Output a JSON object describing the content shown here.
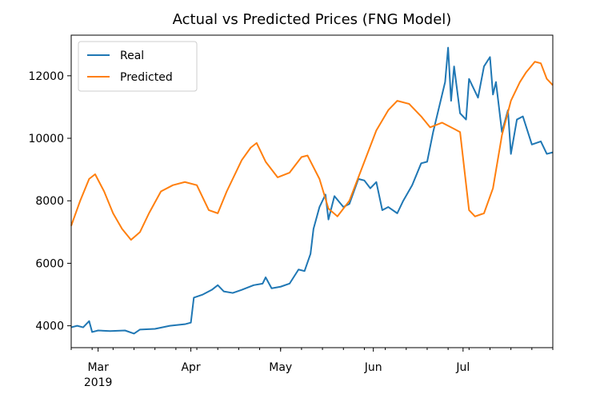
{
  "chart_data": {
    "type": "line",
    "title": "Actual vs Predicted Prices (FNG Model)",
    "xlabel": "",
    "ylabel": "",
    "x_range": [
      "2019-02-20",
      "2019-07-31"
    ],
    "ylim": [
      3300,
      13300
    ],
    "grid": false,
    "legend_position": "top-left",
    "y_ticks": [
      {
        "value": 4000,
        "label": "4000"
      },
      {
        "value": 6000,
        "label": "6000"
      },
      {
        "value": 8000,
        "label": "8000"
      },
      {
        "value": 10000,
        "label": "10000"
      },
      {
        "value": 12000,
        "label": "12000"
      }
    ],
    "x_ticks": [
      {
        "date": "2019-03-01",
        "label": "Mar",
        "sublabel": "2019"
      },
      {
        "date": "2019-04-01",
        "label": "Apr",
        "sublabel": ""
      },
      {
        "date": "2019-05-01",
        "label": "May",
        "sublabel": ""
      },
      {
        "date": "2019-06-01",
        "label": "Jun",
        "sublabel": ""
      },
      {
        "date": "2019-07-01",
        "label": "Jul",
        "sublabel": ""
      }
    ],
    "series": [
      {
        "name": "Real",
        "color": "#1f77b4",
        "points": [
          [
            "2019-02-20",
            3950
          ],
          [
            "2019-02-22",
            4000
          ],
          [
            "2019-02-24",
            3950
          ],
          [
            "2019-02-26",
            4150
          ],
          [
            "2019-02-27",
            3800
          ],
          [
            "2019-03-01",
            3850
          ],
          [
            "2019-03-05",
            3830
          ],
          [
            "2019-03-10",
            3850
          ],
          [
            "2019-03-13",
            3750
          ],
          [
            "2019-03-15",
            3880
          ],
          [
            "2019-03-20",
            3900
          ],
          [
            "2019-03-25",
            4000
          ],
          [
            "2019-03-30",
            4050
          ],
          [
            "2019-04-01",
            4100
          ],
          [
            "2019-04-02",
            4900
          ],
          [
            "2019-04-05",
            5000
          ],
          [
            "2019-04-08",
            5150
          ],
          [
            "2019-04-10",
            5300
          ],
          [
            "2019-04-12",
            5100
          ],
          [
            "2019-04-15",
            5050
          ],
          [
            "2019-04-18",
            5150
          ],
          [
            "2019-04-22",
            5300
          ],
          [
            "2019-04-25",
            5350
          ],
          [
            "2019-04-26",
            5550
          ],
          [
            "2019-04-28",
            5200
          ],
          [
            "2019-05-01",
            5250
          ],
          [
            "2019-05-04",
            5350
          ],
          [
            "2019-05-07",
            5800
          ],
          [
            "2019-05-09",
            5750
          ],
          [
            "2019-05-11",
            6300
          ],
          [
            "2019-05-12",
            7100
          ],
          [
            "2019-05-14",
            7800
          ],
          [
            "2019-05-16",
            8200
          ],
          [
            "2019-05-17",
            7400
          ],
          [
            "2019-05-19",
            8150
          ],
          [
            "2019-05-22",
            7800
          ],
          [
            "2019-05-24",
            7900
          ],
          [
            "2019-05-27",
            8700
          ],
          [
            "2019-05-29",
            8650
          ],
          [
            "2019-05-31",
            8400
          ],
          [
            "2019-06-02",
            8600
          ],
          [
            "2019-06-04",
            7700
          ],
          [
            "2019-06-06",
            7800
          ],
          [
            "2019-06-09",
            7600
          ],
          [
            "2019-06-11",
            8000
          ],
          [
            "2019-06-14",
            8500
          ],
          [
            "2019-06-17",
            9200
          ],
          [
            "2019-06-19",
            9250
          ],
          [
            "2019-06-21",
            10200
          ],
          [
            "2019-06-23",
            11000
          ],
          [
            "2019-06-25",
            11800
          ],
          [
            "2019-06-26",
            12900
          ],
          [
            "2019-06-27",
            11200
          ],
          [
            "2019-06-28",
            12300
          ],
          [
            "2019-06-30",
            10800
          ],
          [
            "2019-07-02",
            10600
          ],
          [
            "2019-07-03",
            11900
          ],
          [
            "2019-07-06",
            11300
          ],
          [
            "2019-07-08",
            12300
          ],
          [
            "2019-07-10",
            12600
          ],
          [
            "2019-07-11",
            11400
          ],
          [
            "2019-07-12",
            11800
          ],
          [
            "2019-07-14",
            10200
          ],
          [
            "2019-07-16",
            10900
          ],
          [
            "2019-07-17",
            9500
          ],
          [
            "2019-07-19",
            10600
          ],
          [
            "2019-07-21",
            10700
          ],
          [
            "2019-07-24",
            9800
          ],
          [
            "2019-07-27",
            9900
          ],
          [
            "2019-07-29",
            9500
          ],
          [
            "2019-07-31",
            9550
          ]
        ]
      },
      {
        "name": "Predicted",
        "color": "#ff7f0e",
        "points": [
          [
            "2019-02-20",
            7200
          ],
          [
            "2019-02-23",
            8000
          ],
          [
            "2019-02-26",
            8700
          ],
          [
            "2019-02-28",
            8850
          ],
          [
            "2019-03-03",
            8300
          ],
          [
            "2019-03-06",
            7600
          ],
          [
            "2019-03-09",
            7100
          ],
          [
            "2019-03-12",
            6750
          ],
          [
            "2019-03-15",
            7000
          ],
          [
            "2019-03-18",
            7600
          ],
          [
            "2019-03-22",
            8300
          ],
          [
            "2019-03-26",
            8500
          ],
          [
            "2019-03-30",
            8600
          ],
          [
            "2019-04-03",
            8500
          ],
          [
            "2019-04-07",
            7700
          ],
          [
            "2019-04-10",
            7600
          ],
          [
            "2019-04-13",
            8300
          ],
          [
            "2019-04-18",
            9300
          ],
          [
            "2019-04-21",
            9700
          ],
          [
            "2019-04-23",
            9850
          ],
          [
            "2019-04-26",
            9250
          ],
          [
            "2019-04-30",
            8750
          ],
          [
            "2019-05-04",
            8900
          ],
          [
            "2019-05-08",
            9400
          ],
          [
            "2019-05-10",
            9450
          ],
          [
            "2019-05-14",
            8700
          ],
          [
            "2019-05-17",
            7750
          ],
          [
            "2019-05-20",
            7500
          ],
          [
            "2019-05-24",
            8000
          ],
          [
            "2019-05-29",
            9250
          ],
          [
            "2019-06-02",
            10250
          ],
          [
            "2019-06-06",
            10900
          ],
          [
            "2019-06-09",
            11200
          ],
          [
            "2019-06-13",
            11100
          ],
          [
            "2019-06-17",
            10700
          ],
          [
            "2019-06-20",
            10350
          ],
          [
            "2019-06-24",
            10500
          ],
          [
            "2019-06-28",
            10300
          ],
          [
            "2019-06-30",
            10200
          ],
          [
            "2019-07-03",
            7700
          ],
          [
            "2019-07-05",
            7500
          ],
          [
            "2019-07-08",
            7600
          ],
          [
            "2019-07-11",
            8400
          ],
          [
            "2019-07-14",
            10100
          ],
          [
            "2019-07-17",
            11200
          ],
          [
            "2019-07-20",
            11800
          ],
          [
            "2019-07-22",
            12100
          ],
          [
            "2019-07-25",
            12450
          ],
          [
            "2019-07-27",
            12400
          ],
          [
            "2019-07-29",
            11900
          ],
          [
            "2019-07-31",
            11700
          ]
        ]
      }
    ]
  }
}
